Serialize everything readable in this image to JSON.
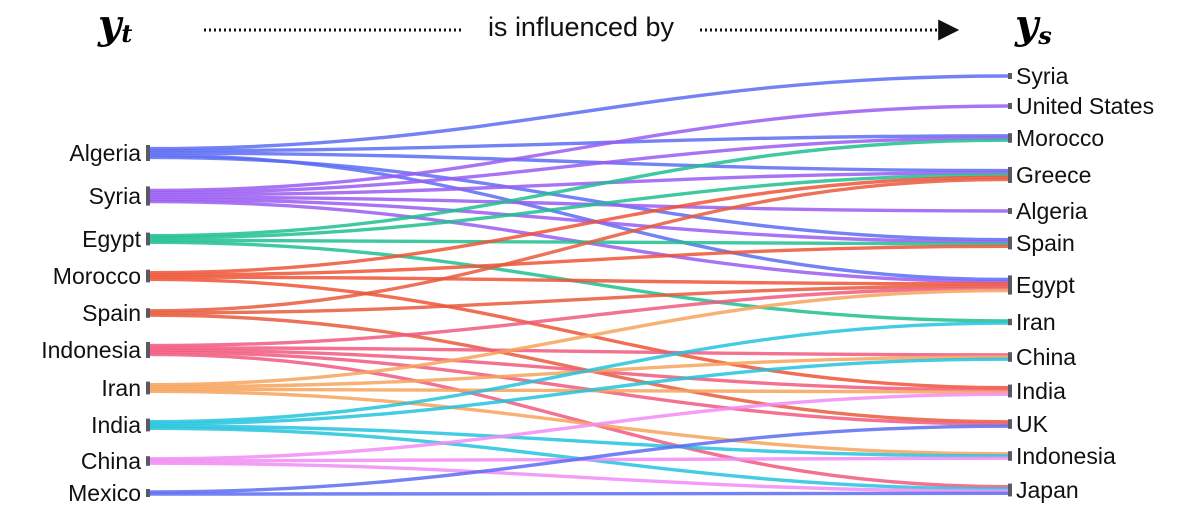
{
  "header": {
    "left_var": "y",
    "left_sub": "t",
    "middle": "is influenced by",
    "right_var": "y",
    "right_sub": "s"
  },
  "left_nodes": [
    {
      "id": "algeria",
      "label": "Algeria",
      "color": "#5b6cf2"
    },
    {
      "id": "syria",
      "label": "Syria",
      "color": "#9a5cf2"
    },
    {
      "id": "egypt",
      "label": "Egypt",
      "color": "#1fbf8f"
    },
    {
      "id": "morocco",
      "label": "Morocco",
      "color": "#ee5436"
    },
    {
      "id": "spain",
      "label": "Spain",
      "color": "#e85a3c"
    },
    {
      "id": "indonesia",
      "label": "Indonesia",
      "color": "#f2597e"
    },
    {
      "id": "iran",
      "label": "Iran",
      "color": "#f7a35c"
    },
    {
      "id": "india",
      "label": "India",
      "color": "#22c3dd"
    },
    {
      "id": "china",
      "label": "China",
      "color": "#f28cf5"
    },
    {
      "id": "mexico",
      "label": "Mexico",
      "color": "#5b6cf2"
    }
  ],
  "right_nodes": [
    {
      "id": "syria",
      "label": "Syria"
    },
    {
      "id": "us",
      "label": "United States"
    },
    {
      "id": "morocco",
      "label": "Morocco"
    },
    {
      "id": "greece",
      "label": "Greece"
    },
    {
      "id": "algeria",
      "label": "Algeria"
    },
    {
      "id": "spain",
      "label": "Spain"
    },
    {
      "id": "egypt",
      "label": "Egypt"
    },
    {
      "id": "iran",
      "label": "Iran"
    },
    {
      "id": "china",
      "label": "China"
    },
    {
      "id": "india",
      "label": "India"
    },
    {
      "id": "uk",
      "label": "UK"
    },
    {
      "id": "indonesia",
      "label": "Indonesia"
    },
    {
      "id": "japan",
      "label": "Japan"
    }
  ],
  "links": [
    {
      "source": "algeria",
      "target": "syria"
    },
    {
      "source": "algeria",
      "target": "morocco"
    },
    {
      "source": "algeria",
      "target": "greece"
    },
    {
      "source": "algeria",
      "target": "egypt"
    },
    {
      "source": "algeria",
      "target": "spain"
    },
    {
      "source": "syria",
      "target": "us"
    },
    {
      "source": "syria",
      "target": "morocco"
    },
    {
      "source": "syria",
      "target": "greece"
    },
    {
      "source": "syria",
      "target": "algeria"
    },
    {
      "source": "syria",
      "target": "spain"
    },
    {
      "source": "syria",
      "target": "egypt"
    },
    {
      "source": "egypt",
      "target": "morocco"
    },
    {
      "source": "egypt",
      "target": "greece"
    },
    {
      "source": "egypt",
      "target": "spain"
    },
    {
      "source": "egypt",
      "target": "iran"
    },
    {
      "source": "morocco",
      "target": "greece"
    },
    {
      "source": "morocco",
      "target": "spain"
    },
    {
      "source": "morocco",
      "target": "egypt"
    },
    {
      "source": "morocco",
      "target": "india"
    },
    {
      "source": "spain",
      "target": "greece"
    },
    {
      "source": "spain",
      "target": "egypt"
    },
    {
      "source": "spain",
      "target": "uk"
    },
    {
      "source": "indonesia",
      "target": "egypt"
    },
    {
      "source": "indonesia",
      "target": "china"
    },
    {
      "source": "indonesia",
      "target": "india"
    },
    {
      "source": "indonesia",
      "target": "uk"
    },
    {
      "source": "indonesia",
      "target": "japan"
    },
    {
      "source": "iran",
      "target": "egypt"
    },
    {
      "source": "iran",
      "target": "china"
    },
    {
      "source": "iran",
      "target": "india"
    },
    {
      "source": "iran",
      "target": "indonesia"
    },
    {
      "source": "india",
      "target": "iran"
    },
    {
      "source": "india",
      "target": "china"
    },
    {
      "source": "india",
      "target": "indonesia"
    },
    {
      "source": "india",
      "target": "japan"
    },
    {
      "source": "china",
      "target": "india"
    },
    {
      "source": "china",
      "target": "indonesia"
    },
    {
      "source": "china",
      "target": "japan"
    },
    {
      "source": "mexico",
      "target": "uk"
    },
    {
      "source": "mexico",
      "target": "japan"
    }
  ]
}
